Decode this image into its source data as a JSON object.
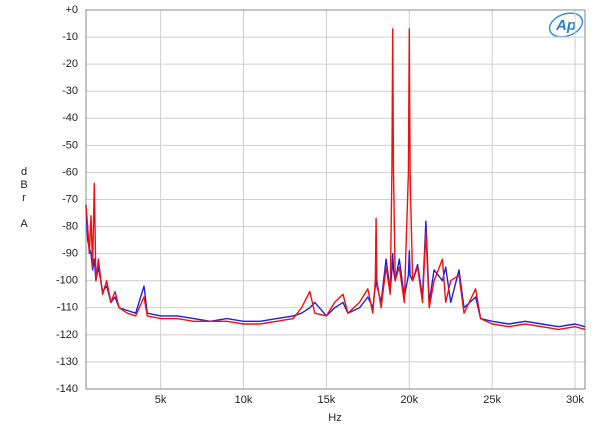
{
  "chart_data": {
    "type": "line",
    "xlabel": "Hz",
    "ylabel": "dBr A",
    "logo": "Ap",
    "xlim": [
      500,
      30600
    ],
    "ylim": [
      -140,
      0
    ],
    "xticks": [
      {
        "value": 5000,
        "label": "5k"
      },
      {
        "value": 10000,
        "label": "10k"
      },
      {
        "value": 15000,
        "label": "15k"
      },
      {
        "value": 20000,
        "label": "20k"
      },
      {
        "value": 25000,
        "label": "25k"
      },
      {
        "value": 30000,
        "label": "30k"
      }
    ],
    "yticks": [
      -140,
      -130,
      -120,
      -110,
      -100,
      -90,
      -80,
      -70,
      -60,
      -50,
      -40,
      -30,
      -20,
      -10,
      {
        "value": 0,
        "label": "+0"
      }
    ],
    "grid": true,
    "x": [
      500,
      600,
      700,
      800,
      900,
      1000,
      1100,
      1250,
      1500,
      1750,
      2000,
      2250,
      2500,
      3000,
      3500,
      4000,
      4200,
      5000,
      6000,
      7000,
      8000,
      9000,
      10000,
      11000,
      12000,
      13000,
      13500,
      14000,
      14300,
      15000,
      15500,
      16000,
      16300,
      17000,
      17500,
      17800,
      17950,
      18000,
      18050,
      18300,
      18600,
      18850,
      18950,
      19000,
      19050,
      19150,
      19400,
      19700,
      19950,
      20000,
      20050,
      20200,
      20500,
      20800,
      21000,
      21200,
      21500,
      22000,
      22200,
      22500,
      23000,
      23300,
      24000,
      24300,
      25000,
      26000,
      27000,
      28000,
      29000,
      30000,
      30600
    ],
    "series": [
      {
        "color": "#1f1fe0",
        "values": [
          -72,
          -85,
          -88,
          -90,
          -96,
          -92,
          -100,
          -95,
          -104,
          -102,
          -108,
          -106,
          -110,
          -111,
          -112,
          -102,
          -112,
          -113,
          -113,
          -114,
          -115,
          -114,
          -115,
          -115,
          -114,
          -113,
          -112,
          -110,
          -108,
          -113,
          -110,
          -108,
          -112,
          -110,
          -106,
          -110,
          -102,
          -95,
          -102,
          -108,
          -92,
          -104,
          -96,
          -90,
          -96,
          -100,
          -92,
          -106,
          -98,
          -89,
          -98,
          -100,
          -94,
          -106,
          -78,
          -108,
          -96,
          -100,
          -95,
          -108,
          -96,
          -110,
          -106,
          -114,
          -115,
          -116,
          -115,
          -116,
          -117,
          -116,
          -117
        ]
      },
      {
        "color": "#ee1111",
        "values": [
          -72,
          -80,
          -90,
          -76,
          -95,
          -64,
          -100,
          -92,
          -105,
          -100,
          -108,
          -104,
          -110,
          -112,
          -113,
          -106,
          -113,
          -114,
          -114,
          -115,
          -115,
          -115,
          -116,
          -116,
          -115,
          -114,
          -110,
          -104,
          -112,
          -113,
          -108,
          -105,
          -112,
          -108,
          -103,
          -112,
          -100,
          -77,
          -100,
          -110,
          -95,
          -105,
          -60,
          -7,
          -60,
          -100,
          -95,
          -108,
          -60,
          -7,
          -60,
          -100,
          -95,
          -108,
          -82,
          -110,
          -100,
          -92,
          -108,
          -100,
          -98,
          -112,
          -103,
          -114,
          -116,
          -117,
          -116,
          -117,
          -118,
          -117,
          -118
        ]
      }
    ]
  }
}
